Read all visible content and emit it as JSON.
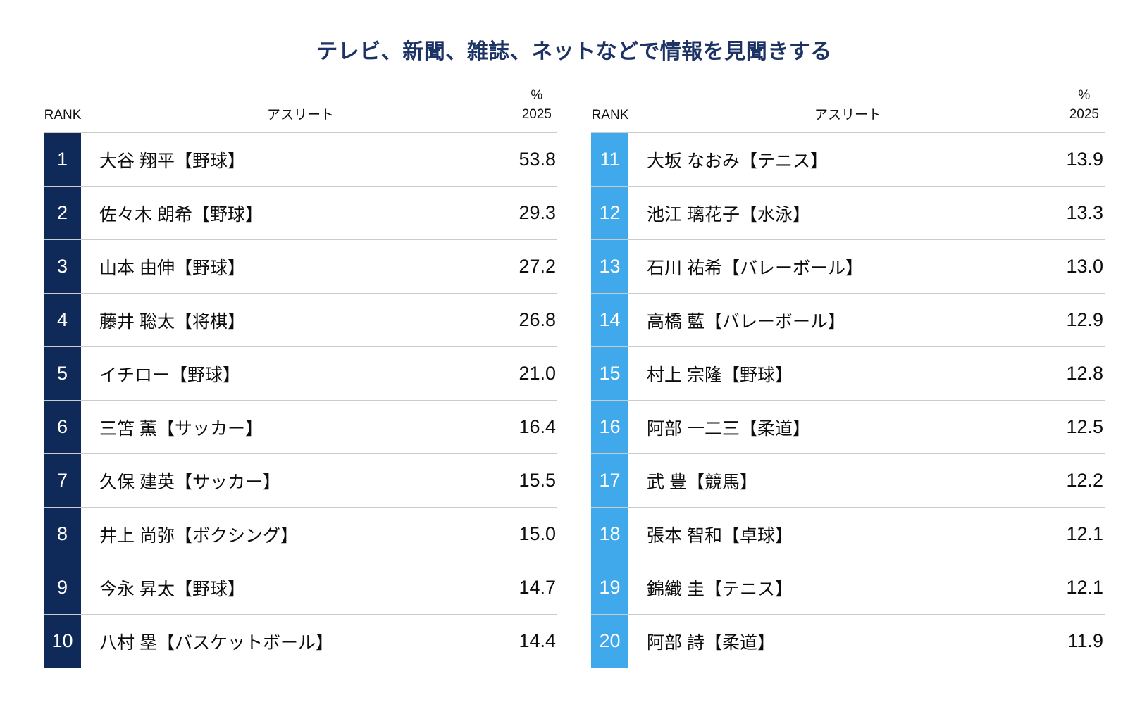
{
  "title": "テレビ、新聞、雑誌、ネットなどで情報を見聞きする",
  "colors": {
    "title": "#1d3366",
    "badge_dark_navy": "#0f2a58",
    "badge_light_blue": "#3fa9ec",
    "separator": "#cbcbcb",
    "text": "#0d0d0d"
  },
  "tables": [
    {
      "headers": {
        "rank": "RANK",
        "athlete": "アスリート",
        "pct_sign": "%",
        "year": "2025"
      },
      "badge_color": "#0f2a58",
      "rows": [
        {
          "rank": "1",
          "athlete": "大谷 翔平【野球】",
          "value": "53.8"
        },
        {
          "rank": "2",
          "athlete": "佐々木 朗希【野球】",
          "value": "29.3"
        },
        {
          "rank": "3",
          "athlete": "山本 由伸【野球】",
          "value": "27.2"
        },
        {
          "rank": "4",
          "athlete": "藤井 聡太【将棋】",
          "value": "26.8"
        },
        {
          "rank": "5",
          "athlete": "イチロー【野球】",
          "value": "21.0"
        },
        {
          "rank": "6",
          "athlete": "三笘 薫【サッカー】",
          "value": "16.4"
        },
        {
          "rank": "7",
          "athlete": "久保 建英【サッカー】",
          "value": "15.5"
        },
        {
          "rank": "8",
          "athlete": "井上 尚弥【ボクシング】",
          "value": "15.0"
        },
        {
          "rank": "9",
          "athlete": "今永 昇太【野球】",
          "value": "14.7"
        },
        {
          "rank": "10",
          "athlete": "八村 塁【バスケットボール】",
          "value": "14.4"
        }
      ]
    },
    {
      "headers": {
        "rank": "RANK",
        "athlete": "アスリート",
        "pct_sign": "%",
        "year": "2025"
      },
      "badge_color": "#3fa9ec",
      "rows": [
        {
          "rank": "11",
          "athlete": "大坂 なおみ【テニス】",
          "value": "13.9"
        },
        {
          "rank": "12",
          "athlete": "池江 璃花子【水泳】",
          "value": "13.3"
        },
        {
          "rank": "13",
          "athlete": "石川 祐希【バレーボール】",
          "value": "13.0"
        },
        {
          "rank": "14",
          "athlete": "高橋 藍【バレーボール】",
          "value": "12.9"
        },
        {
          "rank": "15",
          "athlete": "村上 宗隆【野球】",
          "value": "12.8"
        },
        {
          "rank": "16",
          "athlete": "阿部 一二三【柔道】",
          "value": "12.5"
        },
        {
          "rank": "17",
          "athlete": "武 豊【競馬】",
          "value": "12.2"
        },
        {
          "rank": "18",
          "athlete": "張本 智和【卓球】",
          "value": "12.1"
        },
        {
          "rank": "19",
          "athlete": "錦織 圭【テニス】",
          "value": "12.1"
        },
        {
          "rank": "20",
          "athlete": "阿部 詩【柔道】",
          "value": "11.9"
        }
      ]
    }
  ],
  "chart_data": {
    "type": "table",
    "title": "テレビ、新聞、雑誌、ネットなどで情報を見聞きする",
    "columns": [
      "RANK",
      "アスリート",
      "% 2025"
    ],
    "rows": [
      [
        1,
        "大谷 翔平【野球】",
        53.8
      ],
      [
        2,
        "佐々木 朗希【野球】",
        29.3
      ],
      [
        3,
        "山本 由伸【野球】",
        27.2
      ],
      [
        4,
        "藤井 聡太【将棋】",
        26.8
      ],
      [
        5,
        "イチロー【野球】",
        21.0
      ],
      [
        6,
        "三笘 薫【サッカー】",
        16.4
      ],
      [
        7,
        "久保 建英【サッカー】",
        15.5
      ],
      [
        8,
        "井上 尚弥【ボクシング】",
        15.0
      ],
      [
        9,
        "今永 昇太【野球】",
        14.7
      ],
      [
        10,
        "八村 塁【バスケットボール】",
        14.4
      ],
      [
        11,
        "大坂 なおみ【テニス】",
        13.9
      ],
      [
        12,
        "池江 璃花子【水泳】",
        13.3
      ],
      [
        13,
        "石川 祐希【バレーボール】",
        13.0
      ],
      [
        14,
        "高橋 藍【バレーボール】",
        12.9
      ],
      [
        15,
        "村上 宗隆【野球】",
        12.8
      ],
      [
        16,
        "阿部 一二三【柔道】",
        12.5
      ],
      [
        17,
        "武 豊【競馬】",
        12.2
      ],
      [
        18,
        "張本 智和【卓球】",
        12.1
      ],
      [
        19,
        "錦織 圭【テニス】",
        12.1
      ],
      [
        20,
        "阿部 詩【柔道】",
        11.9
      ]
    ]
  }
}
